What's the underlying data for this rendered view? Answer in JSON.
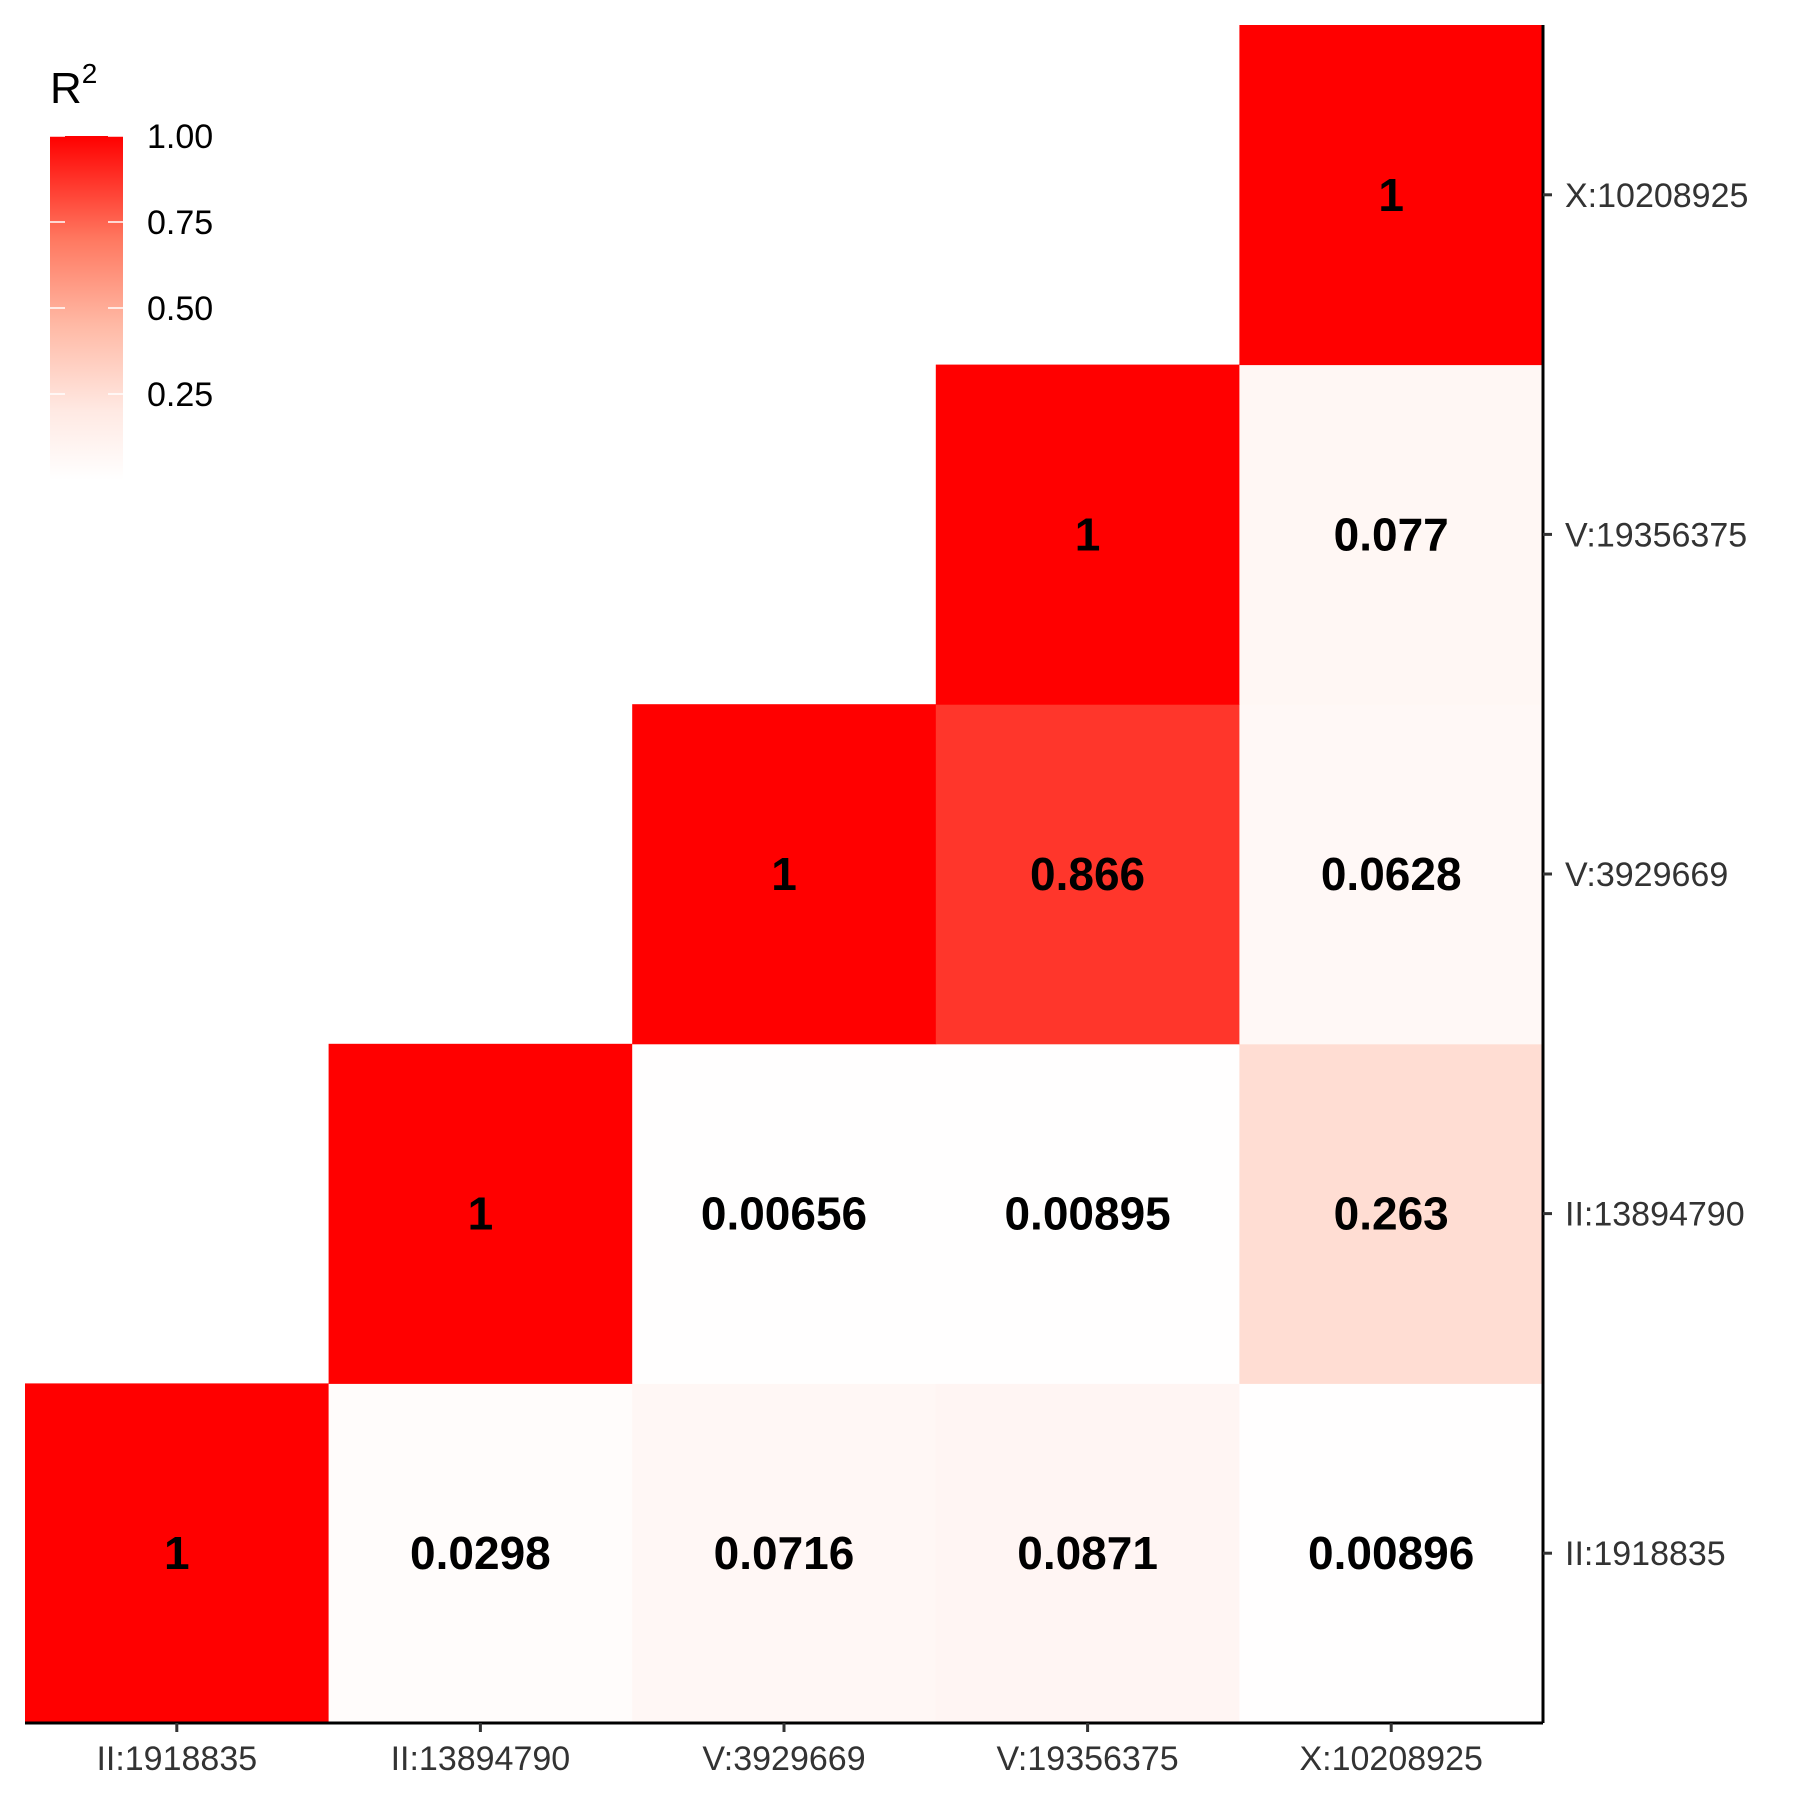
{
  "chart_data": {
    "type": "heatmap",
    "variants": [
      "II:1918835",
      "II:13894790",
      "V:3929669",
      "V:19356375",
      "X:10208925"
    ],
    "cells": [
      {
        "x": "II:1918835",
        "y": "II:1918835",
        "value": 1,
        "label": "1"
      },
      {
        "x": "II:13894790",
        "y": "II:1918835",
        "value": 0.0298,
        "label": "0.0298"
      },
      {
        "x": "V:3929669",
        "y": "II:1918835",
        "value": 0.0716,
        "label": "0.0716"
      },
      {
        "x": "V:19356375",
        "y": "II:1918835",
        "value": 0.0871,
        "label": "0.0871"
      },
      {
        "x": "X:10208925",
        "y": "II:1918835",
        "value": 0.00896,
        "label": "0.00896"
      },
      {
        "x": "II:13894790",
        "y": "II:13894790",
        "value": 1,
        "label": "1"
      },
      {
        "x": "V:3929669",
        "y": "II:13894790",
        "value": 0.00656,
        "label": "0.00656"
      },
      {
        "x": "V:19356375",
        "y": "II:13894790",
        "value": 0.00895,
        "label": "0.00895"
      },
      {
        "x": "X:10208925",
        "y": "II:13894790",
        "value": 0.263,
        "label": "0.263"
      },
      {
        "x": "V:3929669",
        "y": "V:3929669",
        "value": 1,
        "label": "1"
      },
      {
        "x": "V:19356375",
        "y": "V:3929669",
        "value": 0.866,
        "label": "0.866"
      },
      {
        "x": "X:10208925",
        "y": "V:3929669",
        "value": 0.0628,
        "label": "0.0628"
      },
      {
        "x": "V:19356375",
        "y": "V:19356375",
        "value": 1,
        "label": "1"
      },
      {
        "x": "X:10208925",
        "y": "V:19356375",
        "value": 0.077,
        "label": "0.077"
      },
      {
        "x": "X:10208925",
        "y": "X:10208925",
        "value": 1,
        "label": "1"
      }
    ],
    "legend": {
      "title_base": "R",
      "title_sup": "2",
      "ticks": [
        {
          "value": 1.0,
          "label": "1.00"
        },
        {
          "value": 0.75,
          "label": "0.75"
        },
        {
          "value": 0.5,
          "label": "0.50"
        },
        {
          "value": 0.25,
          "label": "0.25"
        }
      ],
      "range": [
        0,
        1
      ],
      "low_color": "#ffffff",
      "high_color": "#ff0000",
      "placement": "top-left"
    },
    "xaxis_position": "bottom",
    "yaxis_position": "right",
    "grid": false
  }
}
